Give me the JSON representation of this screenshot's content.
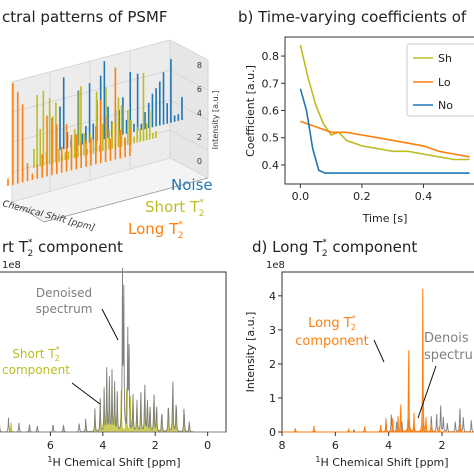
{
  "colors": {
    "short": "#bcbd22",
    "long": "#ff7f0e",
    "noise": "#1f77b4",
    "denoised": "#7f7f7f",
    "text": "#222222",
    "axis": "#333333"
  },
  "panels": {
    "a": {
      "title": "ctral patterns of PSMF"
    },
    "b": {
      "title": "b) Time-varying coefficients of"
    },
    "c": {
      "title": "rt T",
      "title_sub": "2",
      "title_sup": "*",
      "title_tail": " component"
    },
    "d": {
      "title": "d) Long T",
      "title_sub": "2",
      "title_sup": "*",
      "title_tail": " component"
    }
  },
  "chart_data": [
    {
      "id": "a",
      "type": "bar",
      "title": "ctral patterns of PSMF",
      "xlabel": "Chemical Shift [ppm]",
      "ylabel": "Intensity [a.u.]",
      "zticks": [
        "0",
        "2",
        "4",
        "6",
        "8"
      ],
      "series": [
        {
          "name": "Noise"
        },
        {
          "name": "Short T2*"
        },
        {
          "name": "Long T2*"
        }
      ],
      "labels": {
        "noise": "Noise",
        "short": "Short T",
        "long": "Long T",
        "sub": "2",
        "sup": "*"
      }
    },
    {
      "id": "b",
      "type": "line",
      "title": "b) Time-varying coefficients of",
      "xlabel": "Time [s]",
      "ylabel": "Coefficient [a.u.]",
      "xlim": [
        -0.05,
        0.6
      ],
      "ylim": [
        0.33,
        0.87
      ],
      "xticks": [
        0.0,
        0.2,
        0.4
      ],
      "xtick_labels": [
        "0.0",
        "0.2",
        "0.4"
      ],
      "yticks": [
        0.4,
        0.5,
        0.6,
        0.7,
        0.8
      ],
      "ytick_labels": [
        "0.4",
        "0.5",
        "0.6",
        "0.7",
        "0.8"
      ],
      "legend": {
        "placement": "top-right",
        "entries": [
          "Sh",
          "Lo",
          "No"
        ]
      },
      "series": [
        {
          "key": "short",
          "x": [
            0.0,
            0.025,
            0.05,
            0.075,
            0.1,
            0.125,
            0.15,
            0.2,
            0.25,
            0.3,
            0.35,
            0.4,
            0.45,
            0.5,
            0.55
          ],
          "y": [
            0.84,
            0.72,
            0.62,
            0.55,
            0.51,
            0.52,
            0.49,
            0.47,
            0.46,
            0.45,
            0.45,
            0.44,
            0.43,
            0.42,
            0.42
          ]
        },
        {
          "key": "long",
          "x": [
            0.0,
            0.05,
            0.1,
            0.15,
            0.2,
            0.25,
            0.3,
            0.35,
            0.4,
            0.45,
            0.5,
            0.55
          ],
          "y": [
            0.56,
            0.54,
            0.52,
            0.52,
            0.51,
            0.5,
            0.49,
            0.48,
            0.47,
            0.45,
            0.44,
            0.43
          ]
        },
        {
          "key": "noise",
          "x": [
            0.0,
            0.02,
            0.04,
            0.06,
            0.08,
            0.1,
            0.15,
            0.2,
            0.25,
            0.3,
            0.35,
            0.4,
            0.45,
            0.5,
            0.55
          ],
          "y": [
            0.68,
            0.6,
            0.46,
            0.38,
            0.37,
            0.37,
            0.37,
            0.37,
            0.37,
            0.37,
            0.37,
            0.37,
            0.37,
            0.37,
            0.37
          ]
        }
      ]
    },
    {
      "id": "c",
      "type": "line",
      "title": "rt T2* component",
      "xlabel_pre": "",
      "xlabel_sup": "1",
      "xlabel": "H Chemical Shift [ppm]",
      "xlim": [
        8,
        -0.7
      ],
      "xticks": [
        6,
        4,
        2,
        0
      ],
      "xtick_labels": [
        "6",
        "4",
        "2",
        "0"
      ],
      "ylim": [
        0,
        6.6
      ],
      "scale_label": "1e8",
      "annotations": {
        "denoised": [
          "Denoised",
          "spectrum"
        ],
        "component": [
          "Short T",
          "component"
        ],
        "sub": "2",
        "sup": "*"
      },
      "peaks_denoised": [
        [
          7.95,
          0.5
        ],
        [
          7.6,
          0.6
        ],
        [
          7.2,
          0.4
        ],
        [
          6.8,
          0.35
        ],
        [
          6.5,
          0.3
        ],
        [
          5.9,
          0.4
        ],
        [
          5.5,
          0.35
        ],
        [
          4.9,
          0.4
        ],
        [
          4.65,
          0.6
        ],
        [
          4.3,
          1.0
        ],
        [
          4.1,
          1.4
        ],
        [
          3.95,
          1.8
        ],
        [
          3.85,
          2.6
        ],
        [
          3.75,
          2.2
        ],
        [
          3.65,
          2.5
        ],
        [
          3.55,
          2.0
        ],
        [
          3.45,
          1.6
        ],
        [
          3.25,
          6.5
        ],
        [
          3.2,
          5.8
        ],
        [
          3.05,
          4.2
        ],
        [
          3.0,
          3.5
        ],
        [
          2.85,
          1.6
        ],
        [
          2.7,
          1.4
        ],
        [
          2.55,
          1.8
        ],
        [
          2.4,
          2.2
        ],
        [
          2.3,
          1.5
        ],
        [
          2.2,
          1.2
        ],
        [
          2.05,
          1.9
        ],
        [
          1.95,
          1.3
        ],
        [
          1.75,
          1.0
        ],
        [
          1.5,
          1.4
        ],
        [
          1.33,
          2.5
        ],
        [
          1.2,
          1.5
        ],
        [
          0.9,
          1.2
        ],
        [
          0.7,
          0.5
        ]
      ],
      "peaks_component": [
        [
          7.95,
          0.4
        ],
        [
          7.5,
          0.4
        ],
        [
          6.8,
          0.3
        ],
        [
          5.5,
          0.3
        ],
        [
          4.65,
          0.4
        ],
        [
          4.3,
          0.9
        ],
        [
          4.1,
          1.3
        ],
        [
          3.95,
          1.7
        ],
        [
          3.85,
          2.4
        ],
        [
          3.75,
          2.0
        ],
        [
          3.65,
          2.3
        ],
        [
          3.55,
          1.8
        ],
        [
          3.45,
          1.5
        ],
        [
          3.3,
          1.7
        ],
        [
          3.1,
          1.8
        ],
        [
          2.95,
          1.5
        ],
        [
          2.85,
          1.5
        ],
        [
          2.7,
          1.3
        ],
        [
          2.55,
          1.7
        ],
        [
          2.4,
          2.0
        ],
        [
          2.3,
          1.4
        ],
        [
          2.2,
          1.1
        ],
        [
          2.05,
          1.8
        ],
        [
          1.95,
          1.2
        ],
        [
          1.75,
          0.9
        ],
        [
          1.5,
          1.3
        ],
        [
          1.33,
          2.3
        ],
        [
          1.2,
          1.4
        ],
        [
          0.9,
          1.1
        ],
        [
          0.7,
          0.4
        ]
      ]
    },
    {
      "id": "d",
      "type": "line",
      "title": "d) Long T2* component",
      "xlabel_sup": "1",
      "xlabel": "H Chemical Shift [ppm]",
      "ylabel": "Intensity [a.u.]",
      "xlim": [
        8,
        0.5
      ],
      "xticks": [
        8,
        6,
        4,
        2
      ],
      "xtick_labels": [
        "8",
        "6",
        "4",
        "2"
      ],
      "ylim": [
        0,
        4.7
      ],
      "yticks": [
        0,
        1,
        2,
        3,
        4
      ],
      "ytick_labels": [
        "0",
        "1",
        "2",
        "3",
        "4"
      ],
      "scale_label": "1e8",
      "annotations": {
        "component": [
          "Long T",
          "component"
        ],
        "denoised": [
          "Denois",
          "spectru"
        ],
        "sub": "2",
        "sup": "*"
      },
      "peaks_denoised": [
        [
          7.5,
          0.1
        ],
        [
          6.8,
          0.12
        ],
        [
          5.3,
          0.08
        ],
        [
          4.1,
          0.4
        ],
        [
          3.9,
          0.6
        ],
        [
          3.7,
          0.35
        ],
        [
          3.5,
          0.3
        ],
        [
          3.25,
          0.45
        ],
        [
          3.05,
          0.3
        ],
        [
          2.7,
          0.3
        ],
        [
          2.4,
          0.55
        ],
        [
          2.2,
          0.6
        ],
        [
          2.05,
          0.9
        ],
        [
          1.95,
          0.5
        ],
        [
          1.8,
          0.3
        ],
        [
          1.5,
          0.35
        ],
        [
          1.33,
          0.8
        ],
        [
          1.2,
          0.5
        ],
        [
          0.9,
          0.4
        ]
      ],
      "peaks_component": [
        [
          7.5,
          0.12
        ],
        [
          6.8,
          0.18
        ],
        [
          5.5,
          0.1
        ],
        [
          4.9,
          0.2
        ],
        [
          4.3,
          0.25
        ],
        [
          4.1,
          0.35
        ],
        [
          3.85,
          0.5
        ],
        [
          3.65,
          0.45
        ],
        [
          3.55,
          1.0
        ],
        [
          3.25,
          3.0
        ],
        [
          3.05,
          0.55
        ],
        [
          2.72,
          4.2
        ],
        [
          2.6,
          0.4
        ],
        [
          2.4,
          0.3
        ],
        [
          2.1,
          0.2
        ],
        [
          1.33,
          0.3
        ]
      ]
    }
  ]
}
